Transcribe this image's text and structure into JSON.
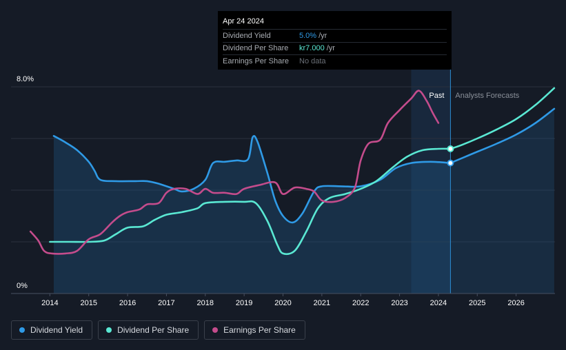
{
  "tooltip": {
    "date": "Apr 24 2024",
    "rows": [
      {
        "label": "Dividend Yield",
        "value": "5.0%",
        "unit": "/yr",
        "color": "#2f9ae6"
      },
      {
        "label": "Dividend Per Share",
        "value": "kr7.000",
        "unit": "/yr",
        "color": "#5ae8d3"
      },
      {
        "label": "Earnings Per Share",
        "value": "No data",
        "unit": "",
        "color": "#6b7078"
      }
    ]
  },
  "legend": [
    {
      "label": "Dividend Yield",
      "color": "#2f9ae6"
    },
    {
      "label": "Dividend Per Share",
      "color": "#5ae8d3"
    },
    {
      "label": "Earnings Per Share",
      "color": "#c44c8c"
    }
  ],
  "chart_data": {
    "type": "line",
    "title": "",
    "y_top_label": "8.0%",
    "y_bottom_label": "0%",
    "ylim": [
      0,
      8
    ],
    "xlim": [
      2013.0,
      2027.0
    ],
    "x_ticks": [
      "2014",
      "2015",
      "2016",
      "2017",
      "2018",
      "2019",
      "2020",
      "2021",
      "2022",
      "2023",
      "2024",
      "2025",
      "2026"
    ],
    "x_tick_values": [
      2014,
      2015,
      2016,
      2017,
      2018,
      2019,
      2020,
      2021,
      2022,
      2023,
      2024,
      2025,
      2026
    ],
    "past_label": "Past",
    "forecast_label": "Analysts Forecasts",
    "forecast_start": 2023.3,
    "tooltip_x": 2024.31,
    "series": [
      {
        "name": "Dividend Yield",
        "color": "#2f9ae6",
        "fill": true,
        "points": [
          [
            2014.1,
            6.1
          ],
          [
            2014.4,
            5.85
          ],
          [
            2014.7,
            5.55
          ],
          [
            2015.0,
            5.1
          ],
          [
            2015.15,
            4.75
          ],
          [
            2015.3,
            4.4
          ],
          [
            2015.7,
            4.35
          ],
          [
            2016.2,
            4.35
          ],
          [
            2016.5,
            4.35
          ],
          [
            2016.8,
            4.25
          ],
          [
            2017.2,
            4.05
          ],
          [
            2017.4,
            3.95
          ],
          [
            2017.7,
            4.05
          ],
          [
            2018.0,
            4.4
          ],
          [
            2018.2,
            5.05
          ],
          [
            2018.5,
            5.1
          ],
          [
            2018.8,
            5.15
          ],
          [
            2019.1,
            5.2
          ],
          [
            2019.22,
            6.05
          ],
          [
            2019.35,
            5.85
          ],
          [
            2019.6,
            4.65
          ],
          [
            2019.8,
            3.6
          ],
          [
            2020.0,
            3.0
          ],
          [
            2020.25,
            2.75
          ],
          [
            2020.5,
            3.1
          ],
          [
            2020.8,
            3.95
          ],
          [
            2021.0,
            4.15
          ],
          [
            2021.5,
            4.15
          ],
          [
            2022.0,
            4.15
          ],
          [
            2022.5,
            4.4
          ],
          [
            2022.9,
            4.85
          ],
          [
            2023.3,
            5.05
          ],
          [
            2023.8,
            5.1
          ],
          [
            2024.31,
            5.05
          ]
        ]
      },
      {
        "name": "Dividend Yield Forecast",
        "color": "#2f9ae6",
        "fill": false,
        "points": [
          [
            2024.31,
            5.05
          ],
          [
            2024.7,
            5.3
          ],
          [
            2025.1,
            5.55
          ],
          [
            2025.5,
            5.8
          ],
          [
            2026.0,
            6.15
          ],
          [
            2026.5,
            6.6
          ],
          [
            2026.98,
            7.15
          ]
        ]
      },
      {
        "name": "Dividend Per Share",
        "color": "#5ae8d3",
        "fill": false,
        "points": [
          [
            2014.0,
            2.0
          ],
          [
            2014.5,
            2.0
          ],
          [
            2015.0,
            2.0
          ],
          [
            2015.4,
            2.05
          ],
          [
            2015.7,
            2.3
          ],
          [
            2016.0,
            2.55
          ],
          [
            2016.4,
            2.6
          ],
          [
            2016.7,
            2.85
          ],
          [
            2017.0,
            3.05
          ],
          [
            2017.4,
            3.15
          ],
          [
            2017.8,
            3.3
          ],
          [
            2018.0,
            3.5
          ],
          [
            2018.5,
            3.55
          ],
          [
            2019.0,
            3.55
          ],
          [
            2019.3,
            3.5
          ],
          [
            2019.6,
            2.8
          ],
          [
            2019.85,
            1.9
          ],
          [
            2020.0,
            1.55
          ],
          [
            2020.3,
            1.65
          ],
          [
            2020.6,
            2.4
          ],
          [
            2020.9,
            3.3
          ],
          [
            2021.2,
            3.7
          ],
          [
            2021.6,
            3.85
          ],
          [
            2022.0,
            4.05
          ],
          [
            2022.4,
            4.35
          ],
          [
            2022.8,
            4.85
          ],
          [
            2023.2,
            5.3
          ],
          [
            2023.6,
            5.55
          ],
          [
            2024.0,
            5.6
          ],
          [
            2024.31,
            5.6
          ]
        ]
      },
      {
        "name": "Dividend Per Share Forecast",
        "color": "#5ae8d3",
        "fill": false,
        "points": [
          [
            2024.31,
            5.6
          ],
          [
            2024.6,
            5.75
          ],
          [
            2025.0,
            6.0
          ],
          [
            2025.5,
            6.35
          ],
          [
            2026.0,
            6.75
          ],
          [
            2026.5,
            7.3
          ],
          [
            2026.98,
            7.95
          ]
        ]
      },
      {
        "name": "Earnings Per Share",
        "color": "#c44c8c",
        "fill": false,
        "points": [
          [
            2013.5,
            2.4
          ],
          [
            2013.7,
            2.05
          ],
          [
            2013.85,
            1.65
          ],
          [
            2014.05,
            1.55
          ],
          [
            2014.4,
            1.55
          ],
          [
            2014.7,
            1.65
          ],
          [
            2015.0,
            2.1
          ],
          [
            2015.3,
            2.3
          ],
          [
            2015.6,
            2.75
          ],
          [
            2015.8,
            3.0
          ],
          [
            2016.0,
            3.15
          ],
          [
            2016.3,
            3.25
          ],
          [
            2016.5,
            3.45
          ],
          [
            2016.8,
            3.5
          ],
          [
            2017.0,
            3.9
          ],
          [
            2017.2,
            4.05
          ],
          [
            2017.5,
            4.05
          ],
          [
            2017.8,
            3.85
          ],
          [
            2018.0,
            4.05
          ],
          [
            2018.2,
            3.9
          ],
          [
            2018.5,
            3.9
          ],
          [
            2018.8,
            3.85
          ],
          [
            2019.0,
            4.05
          ],
          [
            2019.4,
            4.2
          ],
          [
            2019.8,
            4.3
          ],
          [
            2020.0,
            3.85
          ],
          [
            2020.3,
            4.1
          ],
          [
            2020.6,
            4.05
          ],
          [
            2020.8,
            3.95
          ],
          [
            2021.0,
            3.6
          ],
          [
            2021.3,
            3.55
          ],
          [
            2021.6,
            3.7
          ],
          [
            2021.85,
            4.1
          ],
          [
            2022.0,
            5.15
          ],
          [
            2022.2,
            5.8
          ],
          [
            2022.5,
            5.95
          ],
          [
            2022.7,
            6.6
          ],
          [
            2023.0,
            7.1
          ],
          [
            2023.3,
            7.55
          ],
          [
            2023.5,
            7.85
          ],
          [
            2023.7,
            7.45
          ],
          [
            2023.85,
            7.0
          ],
          [
            2024.0,
            6.6
          ]
        ]
      }
    ]
  }
}
